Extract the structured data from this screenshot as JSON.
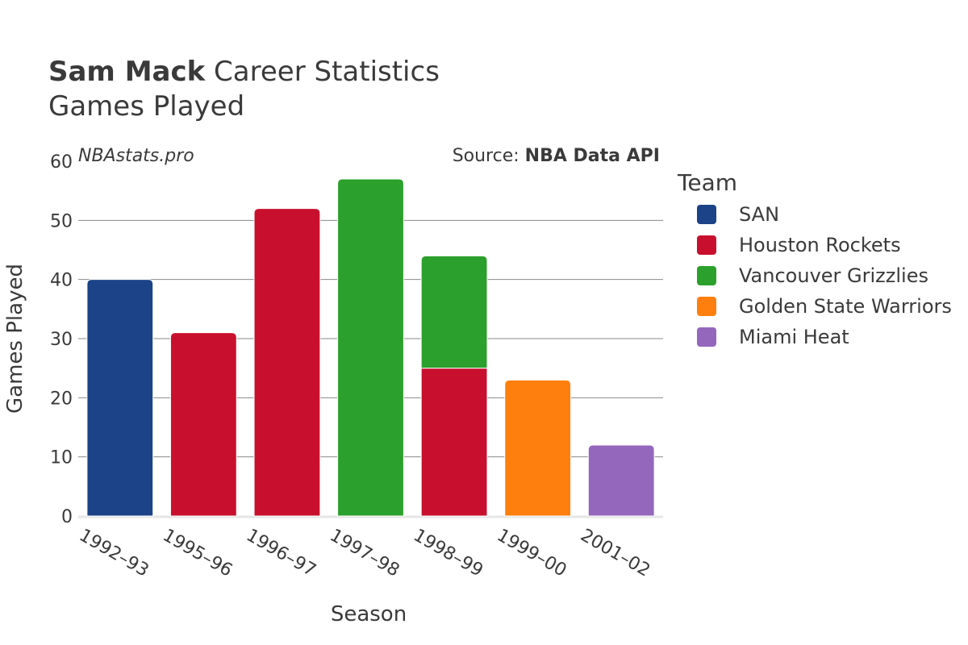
{
  "header": {
    "player_name": "Sam Mack",
    "title_rest": " Career Statistics",
    "subtitle": "Games Played"
  },
  "watermark": "NBAstats.pro",
  "source": {
    "prefix": "Source: ",
    "name": "NBA Data API"
  },
  "legend": {
    "title": "Team"
  },
  "chart_data": {
    "type": "bar",
    "stacked": true,
    "xlabel": "Season",
    "ylabel": "Games Played",
    "ylim": [
      0,
      60
    ],
    "yticks": [
      0,
      10,
      20,
      30,
      40,
      50,
      60
    ],
    "grid": true,
    "legend_position": "right",
    "categories": [
      "1992–93",
      "1995–96",
      "1996–97",
      "1997–98",
      "1998–99",
      "1999–00",
      "2001–02"
    ],
    "series": [
      {
        "name": "SAN",
        "color": "#1c4387",
        "values": [
          40,
          0,
          0,
          0,
          0,
          0,
          0
        ]
      },
      {
        "name": "Houston Rockets",
        "color": "#c8102e",
        "values": [
          0,
          31,
          52,
          0,
          25,
          0,
          0
        ]
      },
      {
        "name": "Vancouver Grizzlies",
        "color": "#2ca02c",
        "values": [
          0,
          0,
          0,
          57,
          19,
          0,
          0
        ]
      },
      {
        "name": "Golden State Warriors",
        "color": "#ff7f0e",
        "values": [
          0,
          0,
          0,
          0,
          0,
          23,
          0
        ]
      },
      {
        "name": "Miami Heat",
        "color": "#9467bd",
        "values": [
          0,
          0,
          0,
          0,
          0,
          0,
          12
        ]
      }
    ]
  }
}
